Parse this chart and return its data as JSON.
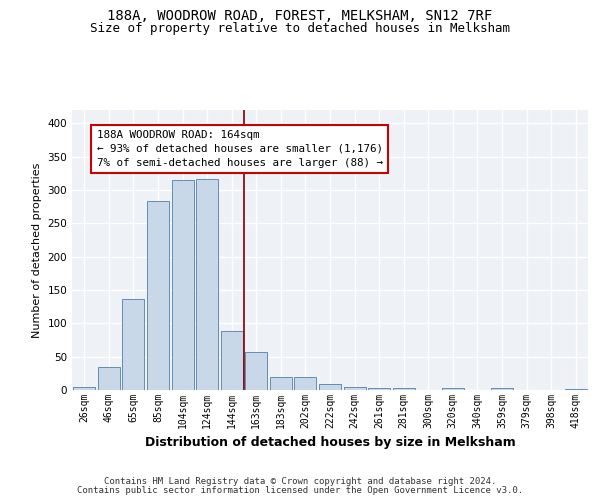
{
  "title_line1": "188A, WOODROW ROAD, FOREST, MELKSHAM, SN12 7RF",
  "title_line2": "Size of property relative to detached houses in Melksham",
  "xlabel": "Distribution of detached houses by size in Melksham",
  "ylabel": "Number of detached properties",
  "bar_labels": [
    "26sqm",
    "46sqm",
    "65sqm",
    "85sqm",
    "104sqm",
    "124sqm",
    "144sqm",
    "163sqm",
    "183sqm",
    "202sqm",
    "222sqm",
    "242sqm",
    "261sqm",
    "281sqm",
    "300sqm",
    "320sqm",
    "340sqm",
    "359sqm",
    "379sqm",
    "398sqm",
    "418sqm"
  ],
  "bar_values": [
    5,
    35,
    137,
    284,
    315,
    317,
    89,
    57,
    20,
    19,
    9,
    4,
    3,
    3,
    0,
    3,
    0,
    3,
    0,
    0,
    2
  ],
  "bar_color": "#c8d8e8",
  "bar_edge_color": "#5080a8",
  "vline_color": "#800000",
  "annotation_title": "188A WOODROW ROAD: 164sqm",
  "annotation_line2": "← 93% of detached houses are smaller (1,176)",
  "annotation_line3": "7% of semi-detached houses are larger (88) →",
  "annotation_box_facecolor": "#ffffff",
  "annotation_box_edgecolor": "#cc0000",
  "ylim": [
    0,
    420
  ],
  "yticks": [
    0,
    50,
    100,
    150,
    200,
    250,
    300,
    350,
    400
  ],
  "bg_color": "#eef2f6",
  "grid_color": "#ffffff",
  "footer_line1": "Contains HM Land Registry data © Crown copyright and database right 2024.",
  "footer_line2": "Contains public sector information licensed under the Open Government Licence v3.0."
}
